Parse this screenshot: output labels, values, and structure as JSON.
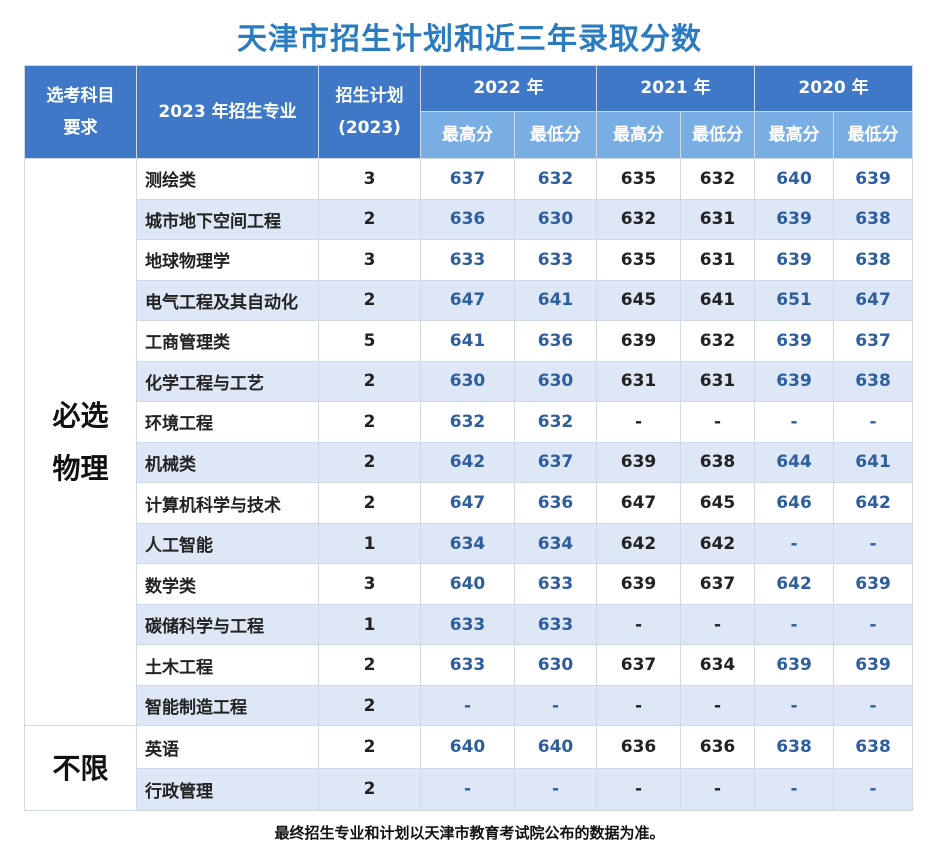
{
  "title": "天津市招生计划和近三年录取分数",
  "header": {
    "req_line1": "选考科目",
    "req_line2": "要求",
    "major": "2023 年招生专业",
    "plan_line1": "招生计划",
    "plan_line2": "(2023)",
    "years": [
      "2022 年",
      "2021 年",
      "2020 年"
    ],
    "max": "最高分",
    "min": "最低分"
  },
  "groups": [
    {
      "req_line1": "必选",
      "req_line2": "物理",
      "rows": [
        {
          "major": "测绘类",
          "plan": "3",
          "s2022max": "637",
          "s2022min": "632",
          "s2021max": "635",
          "s2021min": "632",
          "s2020max": "640",
          "s2020min": "639"
        },
        {
          "major": "城市地下空间工程",
          "plan": "2",
          "s2022max": "636",
          "s2022min": "630",
          "s2021max": "632",
          "s2021min": "631",
          "s2020max": "639",
          "s2020min": "638"
        },
        {
          "major": "地球物理学",
          "plan": "3",
          "s2022max": "633",
          "s2022min": "633",
          "s2021max": "635",
          "s2021min": "631",
          "s2020max": "639",
          "s2020min": "638"
        },
        {
          "major": "电气工程及其自动化",
          "plan": "2",
          "s2022max": "647",
          "s2022min": "641",
          "s2021max": "645",
          "s2021min": "641",
          "s2020max": "651",
          "s2020min": "647"
        },
        {
          "major": "工商管理类",
          "plan": "5",
          "s2022max": "641",
          "s2022min": "636",
          "s2021max": "639",
          "s2021min": "632",
          "s2020max": "639",
          "s2020min": "637"
        },
        {
          "major": "化学工程与工艺",
          "plan": "2",
          "s2022max": "630",
          "s2022min": "630",
          "s2021max": "631",
          "s2021min": "631",
          "s2020max": "639",
          "s2020min": "638"
        },
        {
          "major": "环境工程",
          "plan": "2",
          "s2022max": "632",
          "s2022min": "632",
          "s2021max": "-",
          "s2021min": "-",
          "s2020max": "-",
          "s2020min": "-"
        },
        {
          "major": "机械类",
          "plan": "2",
          "s2022max": "642",
          "s2022min": "637",
          "s2021max": "639",
          "s2021min": "638",
          "s2020max": "644",
          "s2020min": "641"
        },
        {
          "major": "计算机科学与技术",
          "plan": "2",
          "s2022max": "647",
          "s2022min": "636",
          "s2021max": "647",
          "s2021min": "645",
          "s2020max": "646",
          "s2020min": "642"
        },
        {
          "major": "人工智能",
          "plan": "1",
          "s2022max": "634",
          "s2022min": "634",
          "s2021max": "642",
          "s2021min": "642",
          "s2020max": "-",
          "s2020min": "-"
        },
        {
          "major": "数学类",
          "plan": "3",
          "s2022max": "640",
          "s2022min": "633",
          "s2021max": "639",
          "s2021min": "637",
          "s2020max": "642",
          "s2020min": "639"
        },
        {
          "major": "碳储科学与工程",
          "plan": "1",
          "s2022max": "633",
          "s2022min": "633",
          "s2021max": "-",
          "s2021min": "-",
          "s2020max": "-",
          "s2020min": "-"
        },
        {
          "major": "土木工程",
          "plan": "2",
          "s2022max": "633",
          "s2022min": "630",
          "s2021max": "637",
          "s2021min": "634",
          "s2020max": "639",
          "s2020min": "639"
        },
        {
          "major": "智能制造工程",
          "plan": "2",
          "s2022max": "-",
          "s2022min": "-",
          "s2021max": "-",
          "s2021min": "-",
          "s2020max": "-",
          "s2020min": "-"
        }
      ]
    },
    {
      "req_line1": "不限",
      "req_line2": "",
      "rows": [
        {
          "major": "英语",
          "plan": "2",
          "s2022max": "640",
          "s2022min": "640",
          "s2021max": "636",
          "s2021min": "636",
          "s2020max": "638",
          "s2020min": "638"
        },
        {
          "major": "行政管理",
          "plan": "2",
          "s2022max": "-",
          "s2022min": "-",
          "s2021max": "-",
          "s2021min": "-",
          "s2020max": "-",
          "s2020min": "-"
        }
      ]
    }
  ],
  "footnote": "最终招生专业和计划以天津市教育考试院公布的数据为准。"
}
